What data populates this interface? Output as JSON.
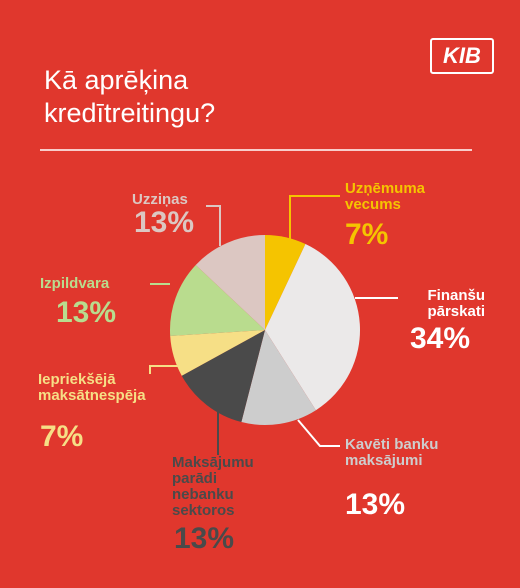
{
  "chart_data": {
    "type": "pie",
    "logo": "KIB",
    "title": "Kā aprēķina kredītreitingu?",
    "categories": [
      "Uzņēmuma vecums",
      "Finanšu pārskati",
      "Kavēti banku maksājumi",
      "Maksājumu parādi nebanku sektoros",
      "Iepriekšējā maksātnespēja",
      "Izpildvara",
      "Uzziņas"
    ],
    "values": [
      7,
      34,
      13,
      13,
      7,
      13,
      13
    ],
    "value_labels": [
      "7%",
      "34%",
      "13%",
      "13%",
      "7%",
      "13%",
      "13%"
    ],
    "colors": [
      "#f5c400",
      "#ebe9e9",
      "#cdcdcd",
      "#4a4a4a",
      "#f6df86",
      "#b9dc8e",
      "#dcc7c2"
    ]
  }
}
